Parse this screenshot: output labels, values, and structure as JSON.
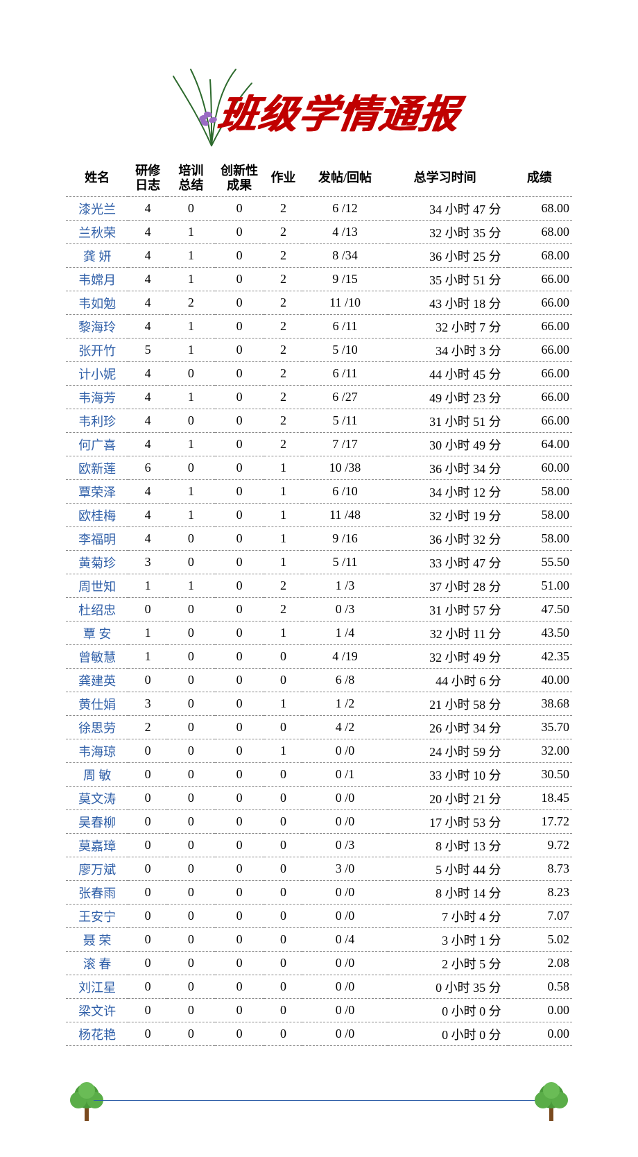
{
  "title": "班级学情通报",
  "colors": {
    "title": "#c00000",
    "name_link": "#2f5fa8",
    "line": "#2f5fa8",
    "dash": "#888888",
    "text": "#000000",
    "background": "#ffffff"
  },
  "header": {
    "name": "姓名",
    "log": "研修日志",
    "summary": "培训总结",
    "innov": "创新性成果",
    "homework": "作业",
    "post": "发帖/回帖",
    "time": "总学习时间",
    "score": "成绩"
  },
  "rows": [
    {
      "name": "漆光兰",
      "log": "4",
      "summary": "0",
      "innov": "0",
      "hw": "2",
      "post": "6 /12",
      "time": "34 小时 47 分",
      "score": "68.00"
    },
    {
      "name": "兰秋荣",
      "log": "4",
      "summary": "1",
      "innov": "0",
      "hw": "2",
      "post": "4 /13",
      "time": "32 小时 35 分",
      "score": "68.00"
    },
    {
      "name": "龚 妍",
      "log": "4",
      "summary": "1",
      "innov": "0",
      "hw": "2",
      "post": "8 /34",
      "time": "36 小时 25 分",
      "score": "68.00"
    },
    {
      "name": "韦嫦月",
      "log": "4",
      "summary": "1",
      "innov": "0",
      "hw": "2",
      "post": "9 /15",
      "time": "35 小时 51 分",
      "score": "66.00"
    },
    {
      "name": "韦如勉",
      "log": "4",
      "summary": "2",
      "innov": "0",
      "hw": "2",
      "post": "11 /10",
      "time": "43 小时 18 分",
      "score": "66.00"
    },
    {
      "name": "黎海玲",
      "log": "4",
      "summary": "1",
      "innov": "0",
      "hw": "2",
      "post": "6 /11",
      "time": "32 小时 7 分",
      "score": "66.00"
    },
    {
      "name": "张开竹",
      "log": "5",
      "summary": "1",
      "innov": "0",
      "hw": "2",
      "post": "5 /10",
      "time": "34 小时 3 分",
      "score": "66.00"
    },
    {
      "name": "计小妮",
      "log": "4",
      "summary": "0",
      "innov": "0",
      "hw": "2",
      "post": "6 /11",
      "time": "44 小时 45 分",
      "score": "66.00"
    },
    {
      "name": "韦海芳",
      "log": "4",
      "summary": "1",
      "innov": "0",
      "hw": "2",
      "post": "6 /27",
      "time": "49 小时 23 分",
      "score": "66.00"
    },
    {
      "name": "韦利珍",
      "log": "4",
      "summary": "0",
      "innov": "0",
      "hw": "2",
      "post": "5 /11",
      "time": "31 小时 51 分",
      "score": "66.00"
    },
    {
      "name": "何广喜",
      "log": "4",
      "summary": "1",
      "innov": "0",
      "hw": "2",
      "post": "7 /17",
      "time": "30 小时 49 分",
      "score": "64.00"
    },
    {
      "name": "欧新莲",
      "log": "6",
      "summary": "0",
      "innov": "0",
      "hw": "1",
      "post": "10 /38",
      "time": "36 小时 34 分",
      "score": "60.00"
    },
    {
      "name": "覃荣泽",
      "log": "4",
      "summary": "1",
      "innov": "0",
      "hw": "1",
      "post": "6 /10",
      "time": "34 小时 12 分",
      "score": "58.00"
    },
    {
      "name": "欧桂梅",
      "log": "4",
      "summary": "1",
      "innov": "0",
      "hw": "1",
      "post": "11 /48",
      "time": "32 小时 19 分",
      "score": "58.00"
    },
    {
      "name": "李福明",
      "log": "4",
      "summary": "0",
      "innov": "0",
      "hw": "1",
      "post": "9 /16",
      "time": "36 小时 32 分",
      "score": "58.00"
    },
    {
      "name": "黄菊珍",
      "log": "3",
      "summary": "0",
      "innov": "0",
      "hw": "1",
      "post": "5 /11",
      "time": "33 小时 47 分",
      "score": "55.50"
    },
    {
      "name": "周世知",
      "log": "1",
      "summary": "1",
      "innov": "0",
      "hw": "2",
      "post": "1 /3",
      "time": "37 小时 28 分",
      "score": "51.00"
    },
    {
      "name": "杜绍忠",
      "log": "0",
      "summary": "0",
      "innov": "0",
      "hw": "2",
      "post": "0 /3",
      "time": "31 小时 57 分",
      "score": "47.50"
    },
    {
      "name": "覃 安",
      "log": "1",
      "summary": "0",
      "innov": "0",
      "hw": "1",
      "post": "1 /4",
      "time": "32 小时 11 分",
      "score": "43.50"
    },
    {
      "name": "曾敏慧",
      "log": "1",
      "summary": "0",
      "innov": "0",
      "hw": "0",
      "post": "4 /19",
      "time": "32 小时 49 分",
      "score": "42.35"
    },
    {
      "name": "龚建英",
      "log": "0",
      "summary": "0",
      "innov": "0",
      "hw": "0",
      "post": "6 /8",
      "time": "44 小时 6 分",
      "score": "40.00"
    },
    {
      "name": "黄仕娟",
      "log": "3",
      "summary": "0",
      "innov": "0",
      "hw": "1",
      "post": "1 /2",
      "time": "21 小时 58 分",
      "score": "38.68"
    },
    {
      "name": "徐思劳",
      "log": "2",
      "summary": "0",
      "innov": "0",
      "hw": "0",
      "post": "4 /2",
      "time": "26 小时 34 分",
      "score": "35.70"
    },
    {
      "name": "韦海琼",
      "log": "0",
      "summary": "0",
      "innov": "0",
      "hw": "1",
      "post": "0 /0",
      "time": "24 小时 59 分",
      "score": "32.00"
    },
    {
      "name": "周 敏",
      "log": "0",
      "summary": "0",
      "innov": "0",
      "hw": "0",
      "post": "0 /1",
      "time": "33 小时 10 分",
      "score": "30.50"
    },
    {
      "name": "莫文涛",
      "log": "0",
      "summary": "0",
      "innov": "0",
      "hw": "0",
      "post": "0 /0",
      "time": "20 小时 21 分",
      "score": "18.45"
    },
    {
      "name": "吴春柳",
      "log": "0",
      "summary": "0",
      "innov": "0",
      "hw": "0",
      "post": "0 /0",
      "time": "17 小时 53 分",
      "score": "17.72"
    },
    {
      "name": "莫嘉璋",
      "log": "0",
      "summary": "0",
      "innov": "0",
      "hw": "0",
      "post": "0 /3",
      "time": "8 小时 13 分",
      "score": "9.72"
    },
    {
      "name": "廖万斌",
      "log": "0",
      "summary": "0",
      "innov": "0",
      "hw": "0",
      "post": "3 /0",
      "time": "5 小时 44 分",
      "score": "8.73"
    },
    {
      "name": "张春雨",
      "log": "0",
      "summary": "0",
      "innov": "0",
      "hw": "0",
      "post": "0 /0",
      "time": "8 小时 14 分",
      "score": "8.23"
    },
    {
      "name": "王安宁",
      "log": "0",
      "summary": "0",
      "innov": "0",
      "hw": "0",
      "post": "0 /0",
      "time": "7 小时 4 分",
      "score": "7.07"
    },
    {
      "name": "聂 荣",
      "log": "0",
      "summary": "0",
      "innov": "0",
      "hw": "0",
      "post": "0 /4",
      "time": "3 小时 1 分",
      "score": "5.02"
    },
    {
      "name": "滚 春",
      "log": "0",
      "summary": "0",
      "innov": "0",
      "hw": "0",
      "post": "0 /0",
      "time": "2 小时 5 分",
      "score": "2.08"
    },
    {
      "name": "刘江星",
      "log": "0",
      "summary": "0",
      "innov": "0",
      "hw": "0",
      "post": "0 /0",
      "time": "0 小时 35 分",
      "score": "0.58"
    },
    {
      "name": "梁文许",
      "log": "0",
      "summary": "0",
      "innov": "0",
      "hw": "0",
      "post": "0 /0",
      "time": "0 小时 0 分",
      "score": "0.00"
    },
    {
      "name": "杨花艳",
      "log": "0",
      "summary": "0",
      "innov": "0",
      "hw": "0",
      "post": "0 /0",
      "time": "0 小时 0 分",
      "score": "0.00"
    }
  ]
}
